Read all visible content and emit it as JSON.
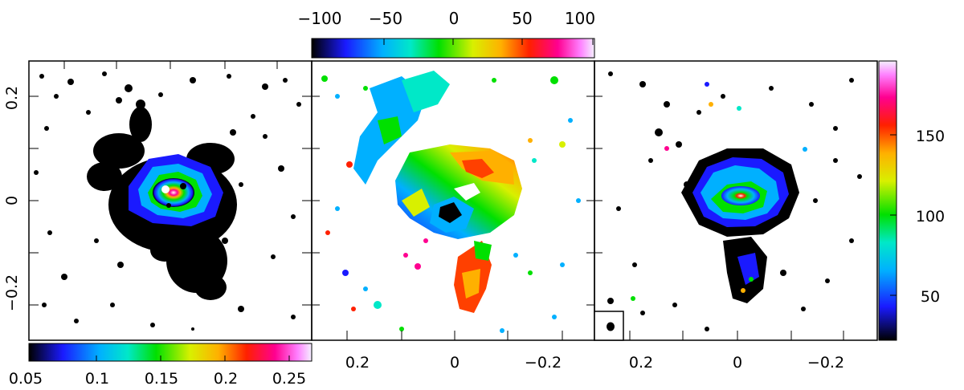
{
  "colors": {
    "map_ramp": [
      "#000000",
      "#1a1aff",
      "#00b0ff",
      "#00e8c8",
      "#00e000",
      "#d8f000",
      "#ffb000",
      "#ff2000",
      "#ff0090",
      "#ff80ff",
      "#f4f0ff"
    ],
    "tick_color": "#000000",
    "frame_color": "#000000",
    "background": "#ffffff"
  },
  "panels": [
    {
      "id": "left",
      "y_tick_labels": [
        "0.2",
        "0",
        "−0.2"
      ],
      "colorbar": {
        "position": "bottom",
        "tick_labels": [
          "0.05",
          "0.1",
          "0.15",
          "0.2",
          "0.25"
        ]
      }
    },
    {
      "id": "middle",
      "x_tick_labels": [
        "0.2",
        "0",
        "−0.2"
      ],
      "colorbar": {
        "position": "top",
        "tick_labels": [
          "−100",
          "−50",
          "0",
          "50",
          "100"
        ]
      }
    },
    {
      "id": "right",
      "x_tick_labels": [
        "0.2",
        "0",
        "−0.2"
      ],
      "colorbar": {
        "position": "right",
        "tick_labels": [
          "150",
          "100",
          "50"
        ]
      },
      "beam_marker": "beam-ellipse"
    }
  ]
}
